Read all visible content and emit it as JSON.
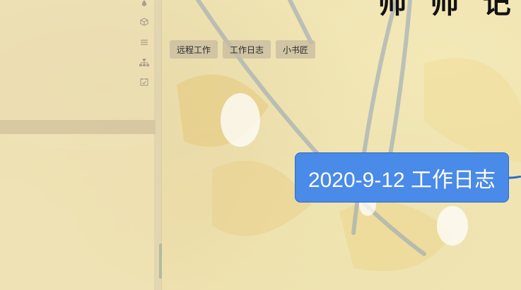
{
  "title_fragment": "帅  帅  记",
  "tags": [
    "远程工作",
    "工作日志",
    "小书匠"
  ],
  "central_topic": {
    "label": "2020-9-12 工作日志",
    "color": "#4a8ae8"
  },
  "sidebar": {
    "icons": [
      "drop-icon",
      "box-icon",
      "list-icon",
      "org-chart-icon",
      "calendar-check-icon"
    ]
  }
}
